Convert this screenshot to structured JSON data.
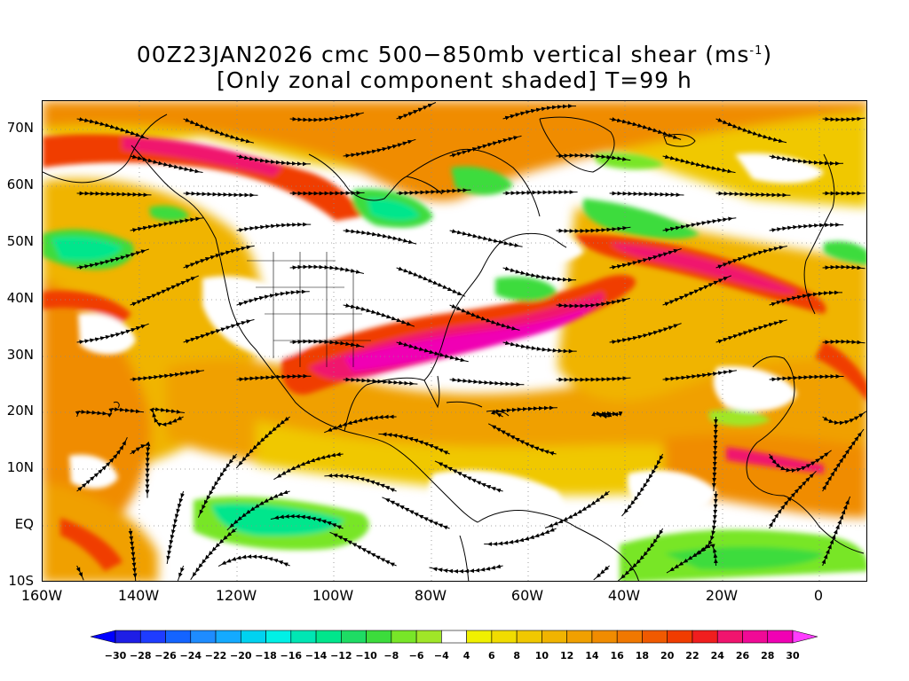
{
  "title": {
    "line1_text": "00Z23JAN2026 cmc 500−850mb vertical shear (ms",
    "line1_sup": "-1",
    "line1_close": ")",
    "line2": "[Only zonal component shaded] T=99 h"
  },
  "axes": {
    "lat_labels": [
      "70N",
      "60N",
      "50N",
      "40N",
      "30N",
      "20N",
      "10N",
      "EQ",
      "10S"
    ],
    "lon_labels": [
      "160W",
      "140W",
      "120W",
      "100W",
      "80W",
      "60W",
      "40W",
      "20W",
      "0"
    ]
  },
  "colorbar": {
    "labels": [
      "-30",
      "-28",
      "-26",
      "-24",
      "-22",
      "-20",
      "-18",
      "-16",
      "-14",
      "-12",
      "-10",
      "-8",
      "-6",
      "-4",
      "4",
      "6",
      "8",
      "10",
      "12",
      "14",
      "16",
      "18",
      "20",
      "22",
      "24",
      "26",
      "28",
      "30"
    ],
    "colors": [
      "#1e1ee6",
      "#1e3cff",
      "#1464ff",
      "#1e8cff",
      "#14aaff",
      "#00d2f0",
      "#00f0e6",
      "#00e6b4",
      "#00e68c",
      "#1edc64",
      "#3cdc3c",
      "#78e628",
      "#a0e628",
      "#ffffff",
      "#f0f000",
      "#f0dc00",
      "#f0c800",
      "#f0b400",
      "#f0a000",
      "#f08c00",
      "#f07800",
      "#f05a00",
      "#f03c00",
      "#f01e1e",
      "#f0146e",
      "#f00a96",
      "#f000b4"
    ],
    "left_arrow_color": "#0000ff",
    "right_arrow_color": "#ff3cff"
  },
  "map": {
    "lon_range": [
      -160,
      10
    ],
    "lat_range": [
      -10,
      75
    ],
    "grid": "dotted"
  }
}
